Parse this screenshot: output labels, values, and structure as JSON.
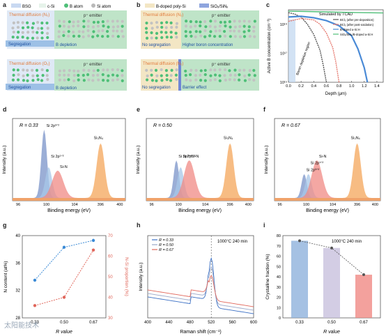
{
  "figure": {
    "panels": {
      "a": {
        "letter": "a",
        "legend": [
          "BSG",
          "c-Si",
          "B atom",
          "Si atom"
        ],
        "top": {
          "heading": "Thermal diffusion (N₂)",
          "emitter": "p⁺ emitter",
          "seg": "Segregation",
          "dep": "B depletion"
        },
        "bottom": {
          "heading": "Thermal diffusion (O₂)",
          "emitter": "p⁺ emitter",
          "seg": "Segregation",
          "dep": "B depletion"
        }
      },
      "b": {
        "letter": "b",
        "legend": [
          "B-doped poly-Si",
          "SiOₓ/SiNₓ"
        ],
        "top": {
          "heading": "Thermal diffusion (N₂)",
          "emitter": "p⁺ emitter",
          "seg": "No segregation",
          "dep": "Higher boron concentration"
        },
        "bottom": {
          "heading": "Thermal diffusion (N₂)",
          "emitter": "p⁺ emitter",
          "seg": "No segregation",
          "dep": "Barrier effect"
        }
      },
      "c": {
        "letter": "c",
        "title": "Simulated by TCAD",
        "xlabel": "Depth (μm)",
        "ylabel": "Active B concentration (cm⁻³)",
        "xticks": [
          "0.0",
          "0.2",
          "0.4",
          "0.6",
          "0.8",
          "1.0",
          "1.2",
          "1.4"
        ],
        "yticks": [
          "10¹⁵",
          "10¹⁷",
          "10¹⁹"
        ],
        "legend": [
          "BCl₃ (after pre-deposition)",
          "BCl₃ (after post-oxidation)",
          "B-doped a-Si:H",
          "SiOₓ/SiNₓ/B-doped a-Si:H"
        ],
        "annotation": "Boron depletion region"
      },
      "d": {
        "letter": "d",
        "r": "R = 0.33",
        "peaks": [
          "Si 2p³ᐟ²",
          "Si 2p¹ᐟ²",
          "Si-N",
          "Si₃N₄"
        ]
      },
      "e": {
        "letter": "e",
        "r": "R = 0.50",
        "peaks": [
          "Si 2p³ᐟ²",
          "Si 2p¹ᐟ²",
          "Si-N",
          "Si₃N₄"
        ]
      },
      "f": {
        "letter": "f",
        "r": "R = 0.67",
        "peaks": [
          "Si 2p³ᐟ²",
          "Si 2p¹ᐟ²",
          "Si-N",
          "Si₃N₄"
        ]
      },
      "g": {
        "letter": "g",
        "xlabel": "R value",
        "ylabel_left": "N content (at%)",
        "ylabel_right": "N-Si proportion (%)"
      },
      "h": {
        "letter": "h",
        "xlabel": "Raman shift (cm⁻¹)",
        "ylabel": "Intensity (a.u.)",
        "note": "1000°C 240 min",
        "legend": [
          "R = 0.33",
          "R = 0.50",
          "R = 0.67"
        ]
      },
      "i": {
        "letter": "i",
        "xlabel": "R value",
        "ylabel": "Crystalline fraction (%)",
        "note": "1000°C 240 min"
      }
    },
    "xps_xlabel": "Binding energy (eV)",
    "xps_ylabel": "Intensity (a.u.)",
    "xps_xticks": [
      "96",
      "100",
      "104",
      "396",
      "400"
    ],
    "watermark": "太阳能技术"
  },
  "colors": {
    "blue": "#3a6fc4",
    "red": "#e0665a",
    "orange": "#f4a65a",
    "green": "#4fbf78",
    "navy": "#2b4f8f",
    "gray": "#9aa0a8"
  },
  "chart_data": [
    {
      "type": "line",
      "panel": "c",
      "title": "Simulated by TCAD",
      "xlabel": "Depth (μm)",
      "ylabel": "Active B concentration (cm⁻³)",
      "xlim": [
        0,
        1.5
      ],
      "ylim_log10": [
        15,
        20
      ],
      "series": [
        {
          "name": "BCl₃ (after pre-deposition)",
          "x": [
            0,
            0.1,
            0.2,
            0.3,
            0.4,
            0.5,
            0.55,
            0.6
          ],
          "log10_y": [
            19.8,
            19.7,
            19.5,
            19.0,
            18.3,
            17.2,
            16.2,
            15.0
          ]
        },
        {
          "name": "BCl₃ (after post-oxidation)",
          "x": [
            0,
            0.2,
            0.4,
            0.5,
            0.6,
            0.7,
            0.75,
            0.8
          ],
          "log10_y": [
            19.2,
            19.4,
            19.3,
            19.0,
            18.4,
            17.4,
            16.4,
            15.0
          ]
        },
        {
          "name": "B-doped a-Si:H",
          "x": [
            0,
            0.2,
            0.4,
            0.6,
            0.8,
            1.0,
            1.1,
            1.2,
            1.25
          ],
          "log10_y": [
            19.5,
            19.55,
            19.45,
            19.25,
            18.9,
            18.2,
            17.3,
            16.0,
            15.0
          ]
        },
        {
          "name": "SiOₓ/SiNₓ/B-doped a-Si:H",
          "x": [
            0,
            0.3,
            0.6,
            0.9,
            1.2,
            1.5
          ],
          "log10_y": [
            19.9,
            19.88,
            19.85,
            19.82,
            19.8,
            19.78
          ]
        }
      ]
    },
    {
      "type": "bar",
      "panel": "g",
      "xlabel": "R value",
      "categories": [
        "0.33",
        "0.50",
        "0.67"
      ],
      "series": [
        {
          "name": "N content (at%)",
          "values": [
            33.5,
            38.3,
            39.3
          ]
        },
        {
          "name": "N-Si proportion (%)",
          "values": [
            36,
            40,
            63
          ]
        }
      ],
      "ylim_left": [
        28,
        40
      ],
      "ylim_right": [
        30,
        70
      ]
    },
    {
      "type": "bar",
      "panel": "i",
      "xlabel": "R value",
      "ylabel": "Crystalline fraction (%)",
      "categories": [
        "0.33",
        "0.50",
        "0.67"
      ],
      "values": [
        75,
        68,
        42
      ],
      "ylim": [
        0,
        80
      ]
    },
    {
      "type": "line",
      "panel": "h",
      "xlabel": "Raman shift (cm⁻¹)",
      "ylabel": "Intensity (a.u.)",
      "xlim": [
        400,
        600
      ],
      "series": [
        {
          "name": "R = 0.33",
          "peak": [
            520,
            1.0
          ]
        },
        {
          "name": "R = 0.50",
          "peak": [
            520,
            0.75
          ]
        },
        {
          "name": "R = 0.67",
          "peak": [
            520,
            0.5
          ]
        }
      ]
    }
  ]
}
